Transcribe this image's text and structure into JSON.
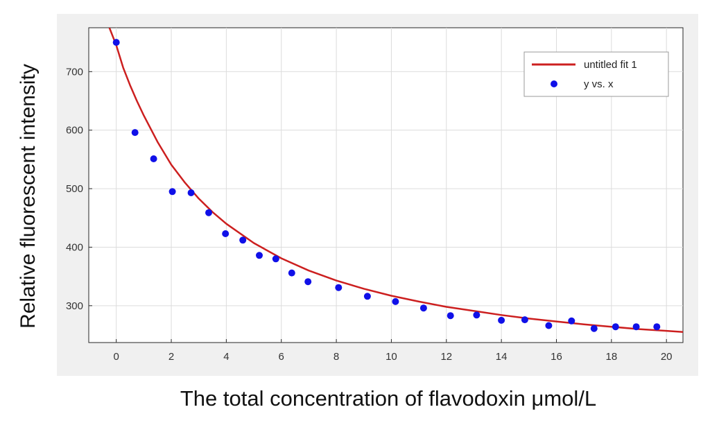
{
  "chart_data": {
    "type": "scatter",
    "title": "",
    "xlabel": "The total concentration of flavodoxin μmol/L",
    "ylabel": "Relative fluorescent intensity",
    "xlim": [
      -1.0,
      20.6
    ],
    "ylim": [
      237,
      775
    ],
    "x_ticks": [
      0,
      2,
      4,
      6,
      8,
      10,
      12,
      14,
      16,
      18,
      20
    ],
    "y_ticks": [
      300,
      400,
      500,
      600,
      700
    ],
    "grid": true,
    "legend_position": "top-right",
    "series": [
      {
        "name": "y vs. x",
        "kind": "scatter",
        "color": "#1010e8",
        "x": [
          0,
          0.68,
          1.36,
          2.04,
          2.72,
          3.36,
          3.97,
          4.6,
          5.2,
          5.8,
          6.38,
          6.97,
          8.08,
          9.13,
          10.15,
          11.17,
          12.15,
          13.1,
          14.0,
          14.85,
          15.72,
          16.55,
          17.37,
          18.15,
          18.9,
          19.65
        ],
        "y": [
          750,
          596,
          551,
          495,
          493,
          459,
          423,
          412,
          386,
          380,
          356,
          341,
          331,
          316,
          307,
          296,
          283,
          284,
          275,
          276,
          266,
          274,
          261,
          264,
          264,
          264
        ]
      },
      {
        "name": "untitled fit 1",
        "kind": "line",
        "color": "#cc1f1f",
        "x": [
          -0.25,
          0,
          0.25,
          0.5,
          0.75,
          1,
          1.5,
          2,
          2.5,
          3,
          3.5,
          4,
          5,
          6,
          7,
          8,
          9,
          10,
          11,
          12,
          13,
          14,
          15,
          16,
          17,
          18,
          19,
          20,
          20.6
        ],
        "y": [
          775,
          745,
          707,
          677,
          650,
          625,
          580,
          541,
          510,
          483,
          460,
          440,
          407,
          381,
          360,
          343,
          329,
          317,
          307,
          298,
          291,
          284,
          278,
          273,
          268,
          264,
          260,
          257,
          255
        ]
      }
    ]
  }
}
